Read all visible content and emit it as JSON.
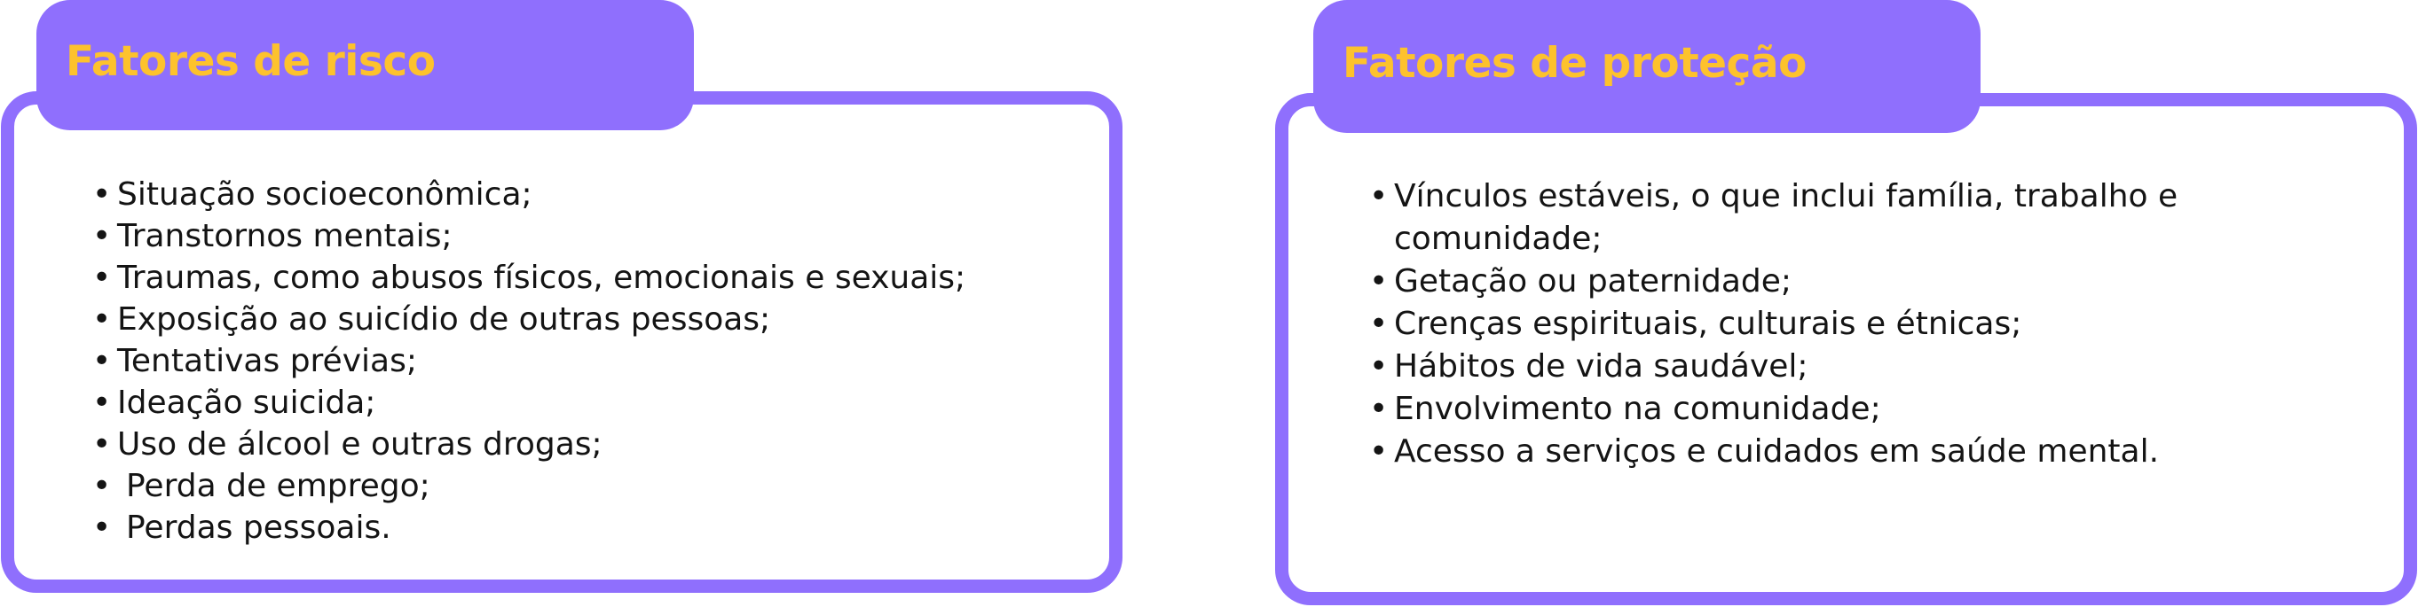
{
  "risk": {
    "title": "Fatores de risco",
    "items": [
      "Situação socioeconômica;",
      "Transtornos mentais;",
      "Traumas, como abusos físicos, emocionais e sexuais;",
      "Exposição ao suicídio de outras pessoas;",
      "Tentativas prévias;",
      "Ideação suicida;",
      "Uso de álcool e outras drogas;",
      "Perda de emprego;",
      "Perdas pessoais."
    ]
  },
  "protection": {
    "title": "Fatores de proteção",
    "items": [
      "Vínculos estáveis, o que inclui família, trabalho e comunidade;",
      "Getação ou paternidade;",
      "Crenças espirituais, culturais e étnicas;",
      "Hábitos de vida saudável;",
      "Envolvimento na comunidade;",
      "Acesso a serviços e cuidados em saúde mental."
    ]
  },
  "colors": {
    "accent": "#8f6ffd",
    "title": "#fdc22d",
    "text": "#141414",
    "background": "#ffffff"
  }
}
